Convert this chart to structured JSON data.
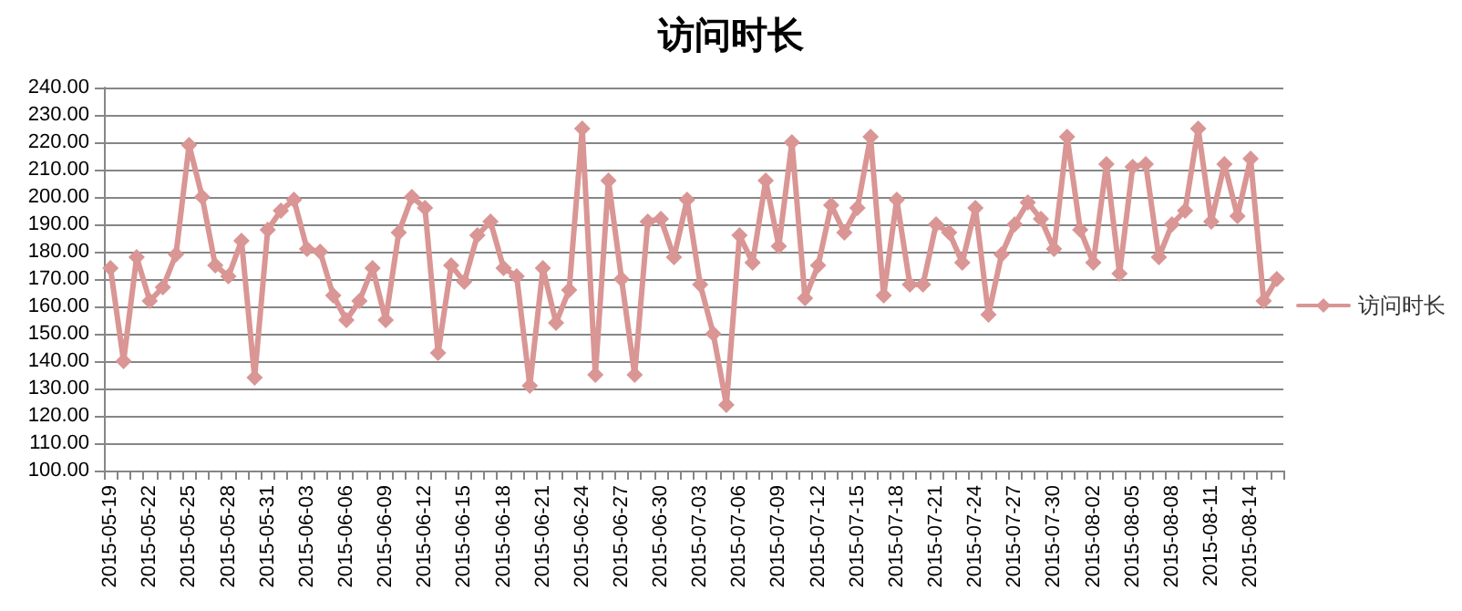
{
  "chart_data": {
    "type": "line",
    "title": "访问时长",
    "categories": [
      "2015-05-19",
      null,
      null,
      "2015-05-22",
      null,
      null,
      "2015-05-25",
      null,
      null,
      "2015-05-28",
      null,
      null,
      "2015-05-31",
      null,
      null,
      "2015-06-03",
      null,
      null,
      "2015-06-06",
      null,
      null,
      "2015-06-09",
      null,
      null,
      "2015-06-12",
      null,
      null,
      "2015-06-15",
      null,
      null,
      "2015-06-18",
      null,
      null,
      "2015-06-21",
      null,
      null,
      "2015-06-24",
      null,
      null,
      "2015-06-27",
      null,
      null,
      "2015-06-30",
      null,
      null,
      "2015-07-03",
      null,
      null,
      "2015-07-06",
      null,
      null,
      "2015-07-09",
      null,
      null,
      "2015-07-12",
      null,
      null,
      "2015-07-15",
      null,
      null,
      "2015-07-18",
      null,
      null,
      "2015-07-21",
      null,
      null,
      "2015-07-24",
      null,
      null,
      "2015-07-27",
      null,
      null,
      "2015-07-30",
      null,
      null,
      "2015-08-02",
      null,
      null,
      "2015-08-05",
      null,
      null,
      "2015-08-08",
      null,
      null,
      "2015-08-11",
      null,
      null,
      "2015-08-14",
      null,
      null
    ],
    "series": [
      {
        "name": "访问时长",
        "color": "#d99694",
        "values": [
          174,
          140,
          178,
          162,
          167,
          179,
          219,
          200,
          175,
          171,
          184,
          134,
          188,
          195,
          199,
          181,
          180,
          164,
          155,
          162,
          174,
          155,
          187,
          200,
          196,
          143,
          175,
          169,
          186,
          191,
          174,
          171,
          131,
          174,
          154,
          166,
          225,
          135,
          206,
          170,
          135,
          191,
          192,
          178,
          199,
          168,
          150,
          124,
          186,
          176,
          206,
          182,
          220,
          163,
          175,
          197,
          187,
          196,
          222,
          164,
          199,
          168,
          168,
          190,
          187,
          176,
          196,
          157,
          179,
          190,
          198,
          192,
          181,
          222,
          188,
          176,
          212,
          172,
          211,
          212,
          178,
          190,
          195,
          225,
          191,
          212,
          193,
          214,
          162,
          170
        ]
      }
    ],
    "ylim": [
      100,
      240
    ],
    "yticks": [
      {
        "value": 100,
        "label": "100.00"
      },
      {
        "value": 110,
        "label": "110.00"
      },
      {
        "value": 120,
        "label": "120.00"
      },
      {
        "value": 130,
        "label": "130.00"
      },
      {
        "value": 140,
        "label": "140.00"
      },
      {
        "value": 150,
        "label": "150.00"
      },
      {
        "value": 160,
        "label": "160.00"
      },
      {
        "value": 170,
        "label": "170.00"
      },
      {
        "value": 180,
        "label": "180.00"
      },
      {
        "value": 190,
        "label": "190.00"
      },
      {
        "value": 200,
        "label": "200.00"
      },
      {
        "value": 210,
        "label": "210.00"
      },
      {
        "value": 220,
        "label": "220.00"
      },
      {
        "value": 230,
        "label": "230.00"
      },
      {
        "value": 240,
        "label": "240.00"
      }
    ],
    "grid": "y",
    "legend": "right",
    "marker": "diamond",
    "line_style": "solid"
  }
}
